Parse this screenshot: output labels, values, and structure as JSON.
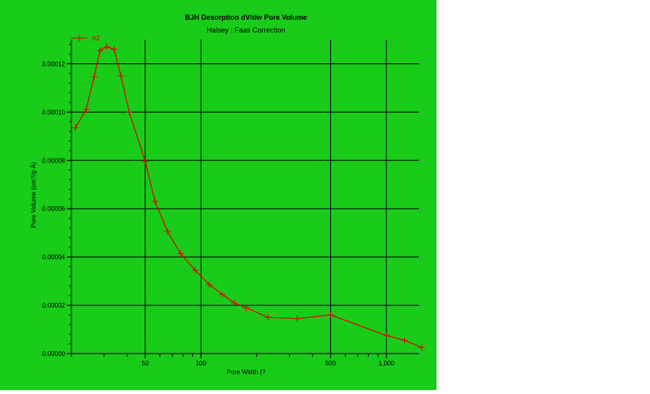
{
  "chart_data": {
    "type": "line",
    "title": "BJH Desorption dV/dw Pore Volume",
    "subtitle": "Halsey : Faas Correction",
    "xlabel": "Pore Width (?",
    "ylabel": "Pore Volume (cm?/g·Å)",
    "x_scale": "log",
    "xlim": [
      20,
      1500
    ],
    "ylim": [
      0,
      0.00013
    ],
    "x_ticks": [
      {
        "value": 50,
        "label": "50"
      },
      {
        "value": 100,
        "label": "100"
      },
      {
        "value": 500,
        "label": "500"
      },
      {
        "value": 1000,
        "label": "1,000"
      }
    ],
    "y_ticks": [
      {
        "value": 0,
        "label": "0.00000"
      },
      {
        "value": 2e-05,
        "label": "0.00002"
      },
      {
        "value": 4e-05,
        "label": "0.00004"
      },
      {
        "value": 6e-05,
        "label": "0.00006"
      },
      {
        "value": 8e-05,
        "label": "0.00008"
      },
      {
        "value": 0.0001,
        "label": "0.00010"
      },
      {
        "value": 0.00012,
        "label": "0.00012"
      }
    ],
    "grid": true,
    "legend_position": "top-left",
    "series": [
      {
        "name": "o2",
        "color": "#e00000",
        "marker": "plus",
        "x": [
          21,
          24,
          26.5,
          28.5,
          31,
          34,
          37,
          41,
          50,
          56.5,
          66,
          77.5,
          93,
          111,
          130,
          151,
          175,
          230,
          330,
          500,
          1000,
          1250,
          1550
        ],
        "y": [
          9.35e-05,
          0.000101,
          0.0001145,
          0.0001255,
          0.000127,
          0.000126,
          0.000115,
          0.0001,
          7.95e-05,
          6.3e-05,
          5.05e-05,
          4.15e-05,
          3.45e-05,
          2.85e-05,
          2.45e-05,
          2.1e-05,
          1.9e-05,
          1.5e-05,
          1.45e-05,
          1.6e-05,
          7.5e-06,
          5.5e-06,
          2.5e-06
        ]
      }
    ]
  }
}
